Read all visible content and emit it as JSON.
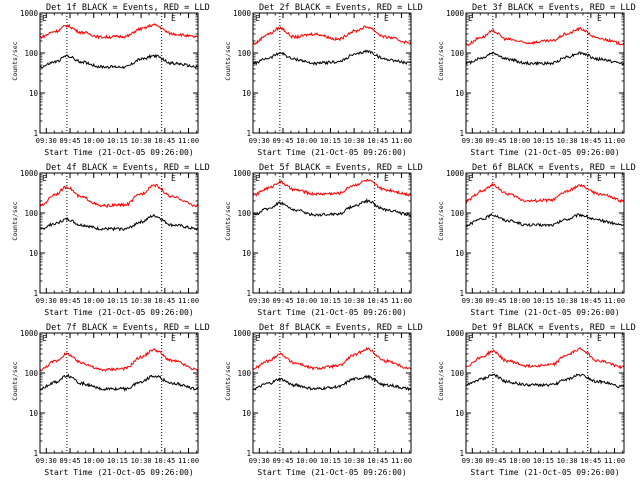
{
  "shared": {
    "start_time_label": "Start Time (21-Oct-05 09:26:00)",
    "ylabel": "Counts/sec",
    "x_ticks": [
      "09:30",
      "09:45",
      "10:00",
      "10:15",
      "10:30",
      "10:45",
      "11:00"
    ],
    "y_ticks": [
      "1",
      "10",
      "100",
      "1000"
    ],
    "marker_E": "E",
    "black_series": "Events",
    "red_series": "LLD",
    "colors": {
      "events": "#000000",
      "lld": "#ff0000",
      "axes": "#000000"
    }
  },
  "chart_data": [
    {
      "type": "line",
      "title": "Det 1f BLACK = Events, RED = LLD",
      "xlabel": "Start Time (21-Oct-05 09:26:00)",
      "ylabel": "Counts/sec",
      "y_scale": "log",
      "ylim": [
        1,
        1000
      ],
      "xlim": [
        "09:26",
        "11:06"
      ],
      "vlines": [
        "09:43",
        "10:43"
      ],
      "series": [
        {
          "name": "Events",
          "color": "#000000",
          "x": [
            "09:26",
            "09:36",
            "09:43",
            "09:52",
            "10:05",
            "10:20",
            "10:30",
            "10:38",
            "10:50",
            "11:06"
          ],
          "y": [
            45,
            60,
            85,
            60,
            45,
            45,
            70,
            85,
            55,
            45
          ]
        },
        {
          "name": "LLD",
          "color": "#ff0000",
          "x": [
            "09:26",
            "09:36",
            "09:43",
            "09:52",
            "10:05",
            "10:20",
            "10:30",
            "10:38",
            "10:50",
            "11:06"
          ],
          "y": [
            250,
            350,
            480,
            330,
            250,
            260,
            400,
            500,
            300,
            250
          ]
        }
      ]
    },
    {
      "type": "line",
      "title": "Det 2f BLACK = Events, RED = LLD",
      "xlabel": "Start Time (21-Oct-05 09:26:00)",
      "ylabel": "Counts/sec",
      "y_scale": "log",
      "ylim": [
        1,
        1000
      ],
      "xlim": [
        "09:26",
        "11:06"
      ],
      "vlines": [
        "09:43",
        "10:43"
      ],
      "series": [
        {
          "name": "Events",
          "color": "#000000",
          "x": [
            "09:26",
            "09:36",
            "09:43",
            "09:52",
            "10:05",
            "10:20",
            "10:30",
            "10:38",
            "10:50",
            "11:06"
          ],
          "y": [
            55,
            75,
            100,
            70,
            55,
            60,
            90,
            110,
            70,
            55
          ]
        },
        {
          "name": "LLD",
          "color": "#ff0000",
          "x": [
            "09:26",
            "09:36",
            "09:43",
            "09:52",
            "10:05",
            "10:20",
            "10:30",
            "10:38",
            "10:50",
            "11:06"
          ],
          "y": [
            170,
            300,
            420,
            250,
            300,
            220,
            350,
            450,
            250,
            180
          ]
        }
      ]
    },
    {
      "type": "line",
      "title": "Det 3f BLACK = Events, RED = LLD",
      "xlabel": "Start Time (21-Oct-05 09:26:00)",
      "ylabel": "Counts/sec",
      "y_scale": "log",
      "ylim": [
        1,
        1000
      ],
      "xlim": [
        "09:26",
        "11:06"
      ],
      "vlines": [
        "09:43",
        "10:43"
      ],
      "series": [
        {
          "name": "Events",
          "color": "#000000",
          "x": [
            "09:26",
            "09:36",
            "09:43",
            "09:52",
            "10:05",
            "10:20",
            "10:30",
            "10:38",
            "10:50",
            "11:06"
          ],
          "y": [
            55,
            75,
            100,
            70,
            55,
            55,
            80,
            100,
            70,
            55
          ]
        },
        {
          "name": "LLD",
          "color": "#ff0000",
          "x": [
            "09:26",
            "09:36",
            "09:43",
            "09:52",
            "10:05",
            "10:20",
            "10:30",
            "10:38",
            "10:50",
            "11:06"
          ],
          "y": [
            160,
            250,
            350,
            220,
            180,
            200,
            300,
            400,
            230,
            170
          ]
        }
      ]
    },
    {
      "type": "line",
      "title": "Det 4f BLACK = Events, RED = LLD",
      "xlabel": "Start Time (21-Oct-05 09:26:00)",
      "ylabel": "Counts/sec",
      "y_scale": "log",
      "ylim": [
        1,
        1000
      ],
      "xlim": [
        "09:26",
        "11:06"
      ],
      "vlines": [
        "09:43",
        "10:43"
      ],
      "series": [
        {
          "name": "Events",
          "color": "#000000",
          "x": [
            "09:26",
            "09:36",
            "09:43",
            "09:52",
            "10:05",
            "10:20",
            "10:30",
            "10:38",
            "10:50",
            "11:06"
          ],
          "y": [
            40,
            55,
            70,
            50,
            40,
            40,
            60,
            85,
            50,
            40
          ]
        },
        {
          "name": "LLD",
          "color": "#ff0000",
          "x": [
            "09:26",
            "09:36",
            "09:43",
            "09:52",
            "10:05",
            "10:20",
            "10:30",
            "10:38",
            "10:50",
            "11:06"
          ],
          "y": [
            150,
            300,
            450,
            250,
            150,
            160,
            300,
            500,
            250,
            150
          ]
        }
      ]
    },
    {
      "type": "line",
      "title": "Det 5f BLACK = Events, RED = LLD",
      "xlabel": "Start Time (21-Oct-05 09:26:00)",
      "ylabel": "Counts/sec",
      "y_scale": "log",
      "ylim": [
        1,
        1000
      ],
      "xlim": [
        "09:26",
        "11:06"
      ],
      "vlines": [
        "09:43",
        "10:43"
      ],
      "series": [
        {
          "name": "Events",
          "color": "#000000",
          "x": [
            "09:26",
            "09:36",
            "09:43",
            "09:52",
            "10:05",
            "10:20",
            "10:30",
            "10:38",
            "10:50",
            "11:06"
          ],
          "y": [
            90,
            130,
            180,
            120,
            90,
            95,
            150,
            200,
            120,
            90
          ]
        },
        {
          "name": "LLD",
          "color": "#ff0000",
          "x": [
            "09:26",
            "09:36",
            "09:43",
            "09:52",
            "10:05",
            "10:20",
            "10:30",
            "10:38",
            "10:50",
            "11:06"
          ],
          "y": [
            280,
            420,
            600,
            380,
            300,
            310,
            500,
            650,
            380,
            290
          ]
        }
      ]
    },
    {
      "type": "line",
      "title": "Det 6f BLACK = Events, RED = LLD",
      "xlabel": "Start Time (21-Oct-05 09:26:00)",
      "ylabel": "Counts/sec",
      "y_scale": "log",
      "ylim": [
        1,
        1000
      ],
      "xlim": [
        "09:26",
        "11:06"
      ],
      "vlines": [
        "09:43",
        "10:43"
      ],
      "series": [
        {
          "name": "Events",
          "color": "#000000",
          "x": [
            "09:26",
            "09:36",
            "09:43",
            "09:52",
            "10:05",
            "10:20",
            "10:30",
            "10:38",
            "10:50",
            "11:06"
          ],
          "y": [
            50,
            70,
            90,
            65,
            50,
            50,
            70,
            90,
            65,
            50
          ]
        },
        {
          "name": "LLD",
          "color": "#ff0000",
          "x": [
            "09:26",
            "09:36",
            "09:43",
            "09:52",
            "10:05",
            "10:20",
            "10:30",
            "10:38",
            "10:50",
            "11:06"
          ],
          "y": [
            200,
            350,
            500,
            300,
            200,
            210,
            350,
            480,
            300,
            200
          ]
        }
      ]
    },
    {
      "type": "line",
      "title": "Det 7f BLACK = Events, RED = LLD",
      "xlabel": "Start Time (21-Oct-05 09:26:00)",
      "ylabel": "Counts/sec",
      "y_scale": "log",
      "ylim": [
        1,
        1000
      ],
      "xlim": [
        "09:26",
        "11:06"
      ],
      "vlines": [
        "09:43",
        "10:43"
      ],
      "series": [
        {
          "name": "Events",
          "color": "#000000",
          "x": [
            "09:26",
            "09:36",
            "09:43",
            "09:52",
            "10:05",
            "10:20",
            "10:30",
            "10:38",
            "10:50",
            "11:06"
          ],
          "y": [
            40,
            60,
            85,
            55,
            40,
            40,
            60,
            85,
            55,
            40
          ]
        },
        {
          "name": "LLD",
          "color": "#ff0000",
          "x": [
            "09:26",
            "09:36",
            "09:43",
            "09:52",
            "10:05",
            "10:20",
            "10:30",
            "10:38",
            "10:50",
            "11:06"
          ],
          "y": [
            120,
            200,
            300,
            180,
            120,
            130,
            250,
            380,
            200,
            120
          ]
        }
      ]
    },
    {
      "type": "line",
      "title": "Det 8f BLACK = Events, RED = LLD",
      "xlabel": "Start Time (21-Oct-05 09:26:00)",
      "ylabel": "Counts/sec",
      "y_scale": "log",
      "ylim": [
        1,
        1000
      ],
      "xlim": [
        "09:26",
        "11:06"
      ],
      "vlines": [
        "09:43",
        "10:43"
      ],
      "series": [
        {
          "name": "Events",
          "color": "#000000",
          "x": [
            "09:26",
            "09:36",
            "09:43",
            "09:52",
            "10:05",
            "10:20",
            "10:30",
            "10:38",
            "10:50",
            "11:06"
          ],
          "y": [
            40,
            55,
            70,
            50,
            40,
            45,
            70,
            80,
            50,
            40
          ]
        },
        {
          "name": "LLD",
          "color": "#ff0000",
          "x": [
            "09:26",
            "09:36",
            "09:43",
            "09:52",
            "10:05",
            "10:20",
            "10:30",
            "10:38",
            "10:50",
            "11:06"
          ],
          "y": [
            130,
            200,
            300,
            180,
            130,
            150,
            280,
            400,
            200,
            130
          ]
        }
      ]
    },
    {
      "type": "line",
      "title": "Det 9f BLACK = Events, RED = LLD",
      "xlabel": "Start Time (21-Oct-05 09:26:00)",
      "ylabel": "Counts/sec",
      "y_scale": "log",
      "ylim": [
        1,
        1000
      ],
      "xlim": [
        "09:26",
        "11:06"
      ],
      "vlines": [
        "09:43",
        "10:43"
      ],
      "series": [
        {
          "name": "Events",
          "color": "#000000",
          "x": [
            "09:26",
            "09:36",
            "09:43",
            "09:52",
            "10:05",
            "10:20",
            "10:30",
            "10:38",
            "10:50",
            "11:06"
          ],
          "y": [
            50,
            70,
            90,
            60,
            50,
            50,
            70,
            90,
            60,
            45
          ]
        },
        {
          "name": "LLD",
          "color": "#ff0000",
          "x": [
            "09:26",
            "09:36",
            "09:43",
            "09:52",
            "10:05",
            "10:20",
            "10:30",
            "10:38",
            "10:50",
            "11:06"
          ],
          "y": [
            150,
            250,
            350,
            200,
            150,
            160,
            280,
            400,
            200,
            140
          ]
        }
      ]
    }
  ]
}
